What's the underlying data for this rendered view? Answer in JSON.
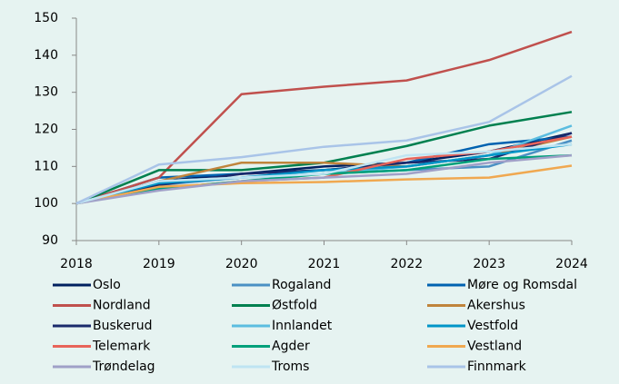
{
  "chart_data": {
    "type": "line",
    "categories": [
      "2018",
      "2019",
      "2020",
      "2021",
      "2022",
      "2023",
      "2024"
    ],
    "ylim": [
      90,
      150
    ],
    "yticks": [
      90,
      100,
      110,
      120,
      130,
      140,
      150
    ],
    "series": [
      {
        "name": "Oslo",
        "color": "#002060",
        "values": [
          100,
          106,
          108,
          110,
          111,
          114,
          119
        ]
      },
      {
        "name": "Rogaland",
        "color": "#4a90c4",
        "values": [
          100,
          105,
          107,
          108,
          109,
          110,
          117
        ]
      },
      {
        "name": "Møre og Romsdal",
        "color": "#0062b0",
        "values": [
          100,
          107,
          108,
          109,
          111,
          116,
          118
        ]
      },
      {
        "name": "Nordland",
        "color": "#c0504d",
        "values": [
          100,
          107,
          129.5,
          131.5,
          133.2,
          138.7,
          146.3
        ]
      },
      {
        "name": "Østfold",
        "color": "#00804f",
        "values": [
          100,
          109,
          109,
          111,
          115.5,
          121,
          124.7
        ]
      },
      {
        "name": "Akershus",
        "color": "#c0843c",
        "values": [
          100,
          106,
          111,
          111,
          110,
          113,
          118
        ]
      },
      {
        "name": "Buskerud",
        "color": "#1a2a6c",
        "values": [
          100,
          105,
          108,
          109,
          111,
          112,
          119
        ]
      },
      {
        "name": "Innlandet",
        "color": "#5bbde0",
        "values": [
          100,
          106,
          107,
          108,
          110,
          113,
          121
        ]
      },
      {
        "name": "Vestfold",
        "color": "#0095c8",
        "values": [
          100,
          105.5,
          107,
          109,
          110,
          113,
          116
        ]
      },
      {
        "name": "Telemark",
        "color": "#e8645a",
        "values": [
          100,
          104,
          106,
          107,
          112,
          114,
          118
        ]
      },
      {
        "name": "Agder",
        "color": "#00a07a",
        "values": [
          100,
          104,
          106,
          108,
          109,
          112,
          113
        ]
      },
      {
        "name": "Vestland",
        "color": "#f0a850",
        "values": [
          100,
          104.5,
          105.5,
          105.8,
          106.5,
          107,
          110.2
        ]
      },
      {
        "name": "Trøndelag",
        "color": "#a0a0c8",
        "values": [
          100,
          103.5,
          106,
          107,
          108,
          111,
          113
        ]
      },
      {
        "name": "Troms",
        "color": "#bfe4f2",
        "values": [
          100,
          106,
          107,
          108,
          113,
          114,
          116
        ]
      },
      {
        "name": "Finnmark",
        "color": "#a9c4e8",
        "values": [
          100,
          110.5,
          112.5,
          115.3,
          117,
          122,
          134.4
        ]
      }
    ]
  }
}
